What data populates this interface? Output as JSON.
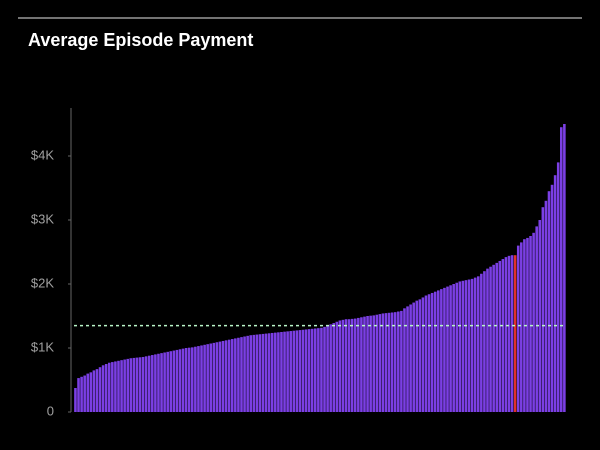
{
  "chart_data": {
    "type": "bar",
    "title": "Average Episode Payment",
    "values": [
      375,
      530,
      550,
      570,
      600,
      620,
      650,
      670,
      700,
      730,
      750,
      770,
      780,
      790,
      800,
      810,
      820,
      830,
      840,
      845,
      850,
      855,
      860,
      870,
      880,
      890,
      900,
      910,
      920,
      930,
      940,
      950,
      960,
      970,
      980,
      990,
      1000,
      1005,
      1010,
      1020,
      1030,
      1040,
      1050,
      1060,
      1070,
      1080,
      1090,
      1100,
      1110,
      1120,
      1130,
      1140,
      1150,
      1160,
      1170,
      1180,
      1190,
      1200,
      1205,
      1210,
      1215,
      1220,
      1225,
      1230,
      1235,
      1240,
      1245,
      1250,
      1255,
      1260,
      1265,
      1270,
      1275,
      1280,
      1285,
      1290,
      1295,
      1300,
      1305,
      1310,
      1315,
      1330,
      1350,
      1370,
      1390,
      1410,
      1430,
      1440,
      1450,
      1450,
      1455,
      1460,
      1470,
      1480,
      1490,
      1500,
      1505,
      1510,
      1520,
      1530,
      1540,
      1545,
      1550,
      1555,
      1560,
      1570,
      1580,
      1620,
      1650,
      1680,
      1710,
      1740,
      1760,
      1790,
      1820,
      1840,
      1860,
      1880,
      1900,
      1920,
      1940,
      1960,
      1980,
      2000,
      2020,
      2040,
      2050,
      2060,
      2070,
      2080,
      2100,
      2120,
      2160,
      2200,
      2240,
      2270,
      2300,
      2330,
      2360,
      2390,
      2420,
      2440,
      2450,
      2450,
      2600,
      2650,
      2700,
      2720,
      2750,
      2800,
      2900,
      3000,
      3200,
      3300,
      3450,
      3550,
      3700,
      3900,
      4450,
      4500
    ],
    "color": "#7b3fe4",
    "highlight_index": 143,
    "highlight_color": "#e0322c",
    "reference_line": {
      "value": 1350,
      "color": "#b9f5c8"
    },
    "ylim": [
      0,
      4750
    ],
    "yticks": [
      0,
      {
        "value": 1000,
        "label": "$1K"
      },
      {
        "value": 2000,
        "label": "$2K"
      },
      {
        "value": 3000,
        "label": "$3K"
      },
      {
        "value": 4000,
        "label": "$4K"
      }
    ]
  }
}
